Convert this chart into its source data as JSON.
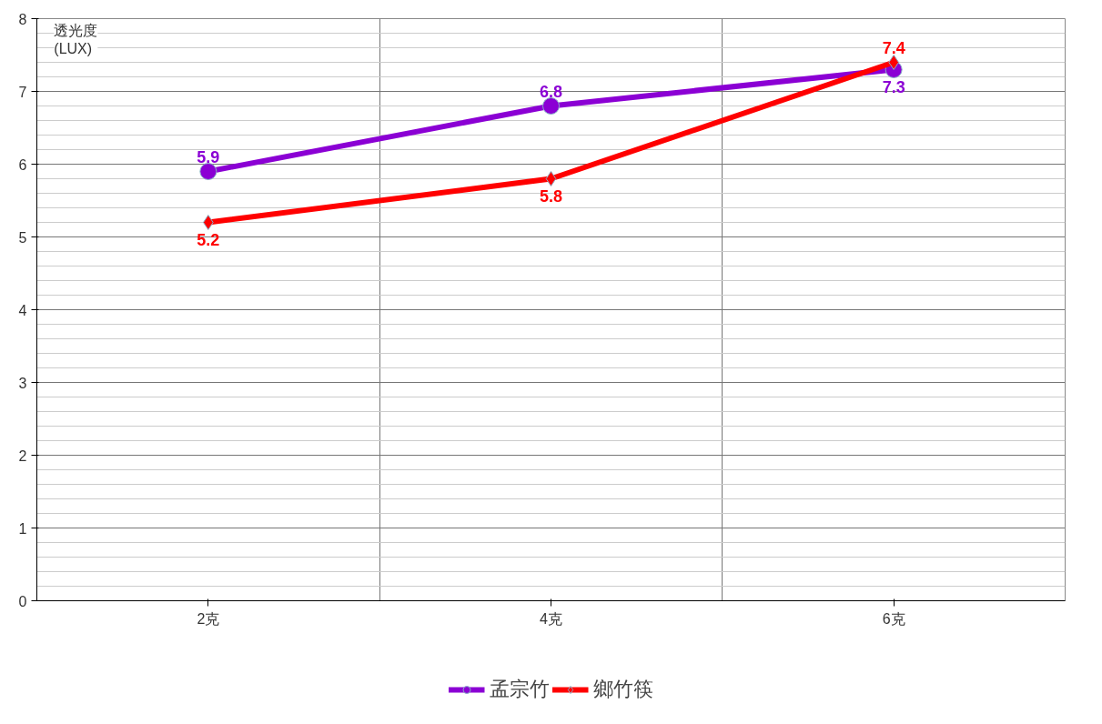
{
  "chart_data": {
    "type": "line",
    "ylabel": "透光度\n(LUX)",
    "categories": [
      "2克",
      "4克",
      "6克"
    ],
    "series": [
      {
        "name": "孟宗竹",
        "color": "#8b00d4",
        "values": [
          5.9,
          6.8,
          7.3
        ],
        "marker": "circle"
      },
      {
        "name": "鄉竹筷",
        "color": "#ff0000",
        "values": [
          5.2,
          5.8,
          7.4
        ],
        "marker": "diamond"
      }
    ],
    "ylim": [
      0,
      8
    ],
    "yticks": [
      0,
      1,
      2,
      3,
      4,
      5,
      6,
      7,
      8
    ],
    "grid": true,
    "legend": "bottom",
    "data_labels": true,
    "line_style": "solid"
  }
}
